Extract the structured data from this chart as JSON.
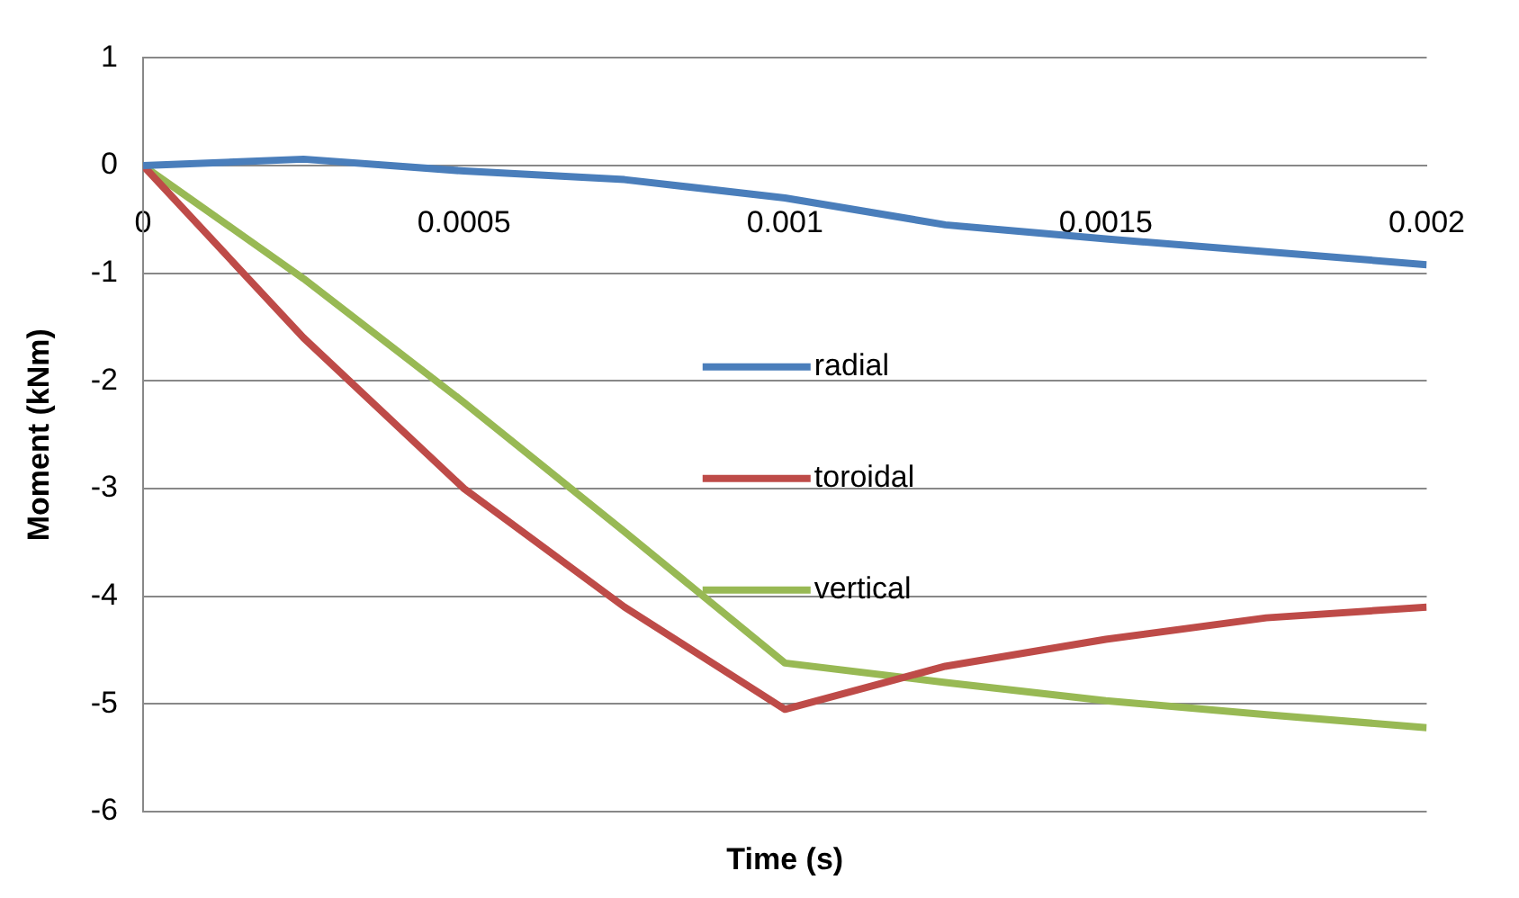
{
  "chart_data": {
    "type": "line",
    "xlabel": "Time (s)",
    "ylabel": "Moment (kNm)",
    "x": [
      0,
      0.00025,
      0.0005,
      0.00075,
      0.001,
      0.00125,
      0.0015,
      0.00175,
      0.002
    ],
    "series": [
      {
        "name": "radial",
        "color": "#4a7ebb",
        "values": [
          0,
          0.06,
          -0.05,
          -0.13,
          -0.3,
          -0.55,
          -0.68,
          -0.8,
          -0.92
        ]
      },
      {
        "name": "toroidal",
        "color": "#be4b48",
        "values": [
          0,
          -1.6,
          -3.0,
          -4.1,
          -5.05,
          -4.65,
          -4.4,
          -4.2,
          -4.1
        ]
      },
      {
        "name": "vertical",
        "color": "#98b954",
        "values": [
          0,
          -1.05,
          -2.2,
          -3.4,
          -4.62,
          -4.8,
          -4.97,
          -5.1,
          -5.22
        ]
      }
    ],
    "xlim": [
      0,
      0.002
    ],
    "xticks": [
      0,
      0.0005,
      0.001,
      0.0015,
      0.002
    ],
    "ylim": [
      -6,
      1
    ],
    "yticks": [
      1,
      0,
      -1,
      -2,
      -3,
      -4,
      -5,
      -6
    ],
    "grid": "y",
    "legend": "center",
    "marker": "none",
    "line_style": "solid"
  }
}
